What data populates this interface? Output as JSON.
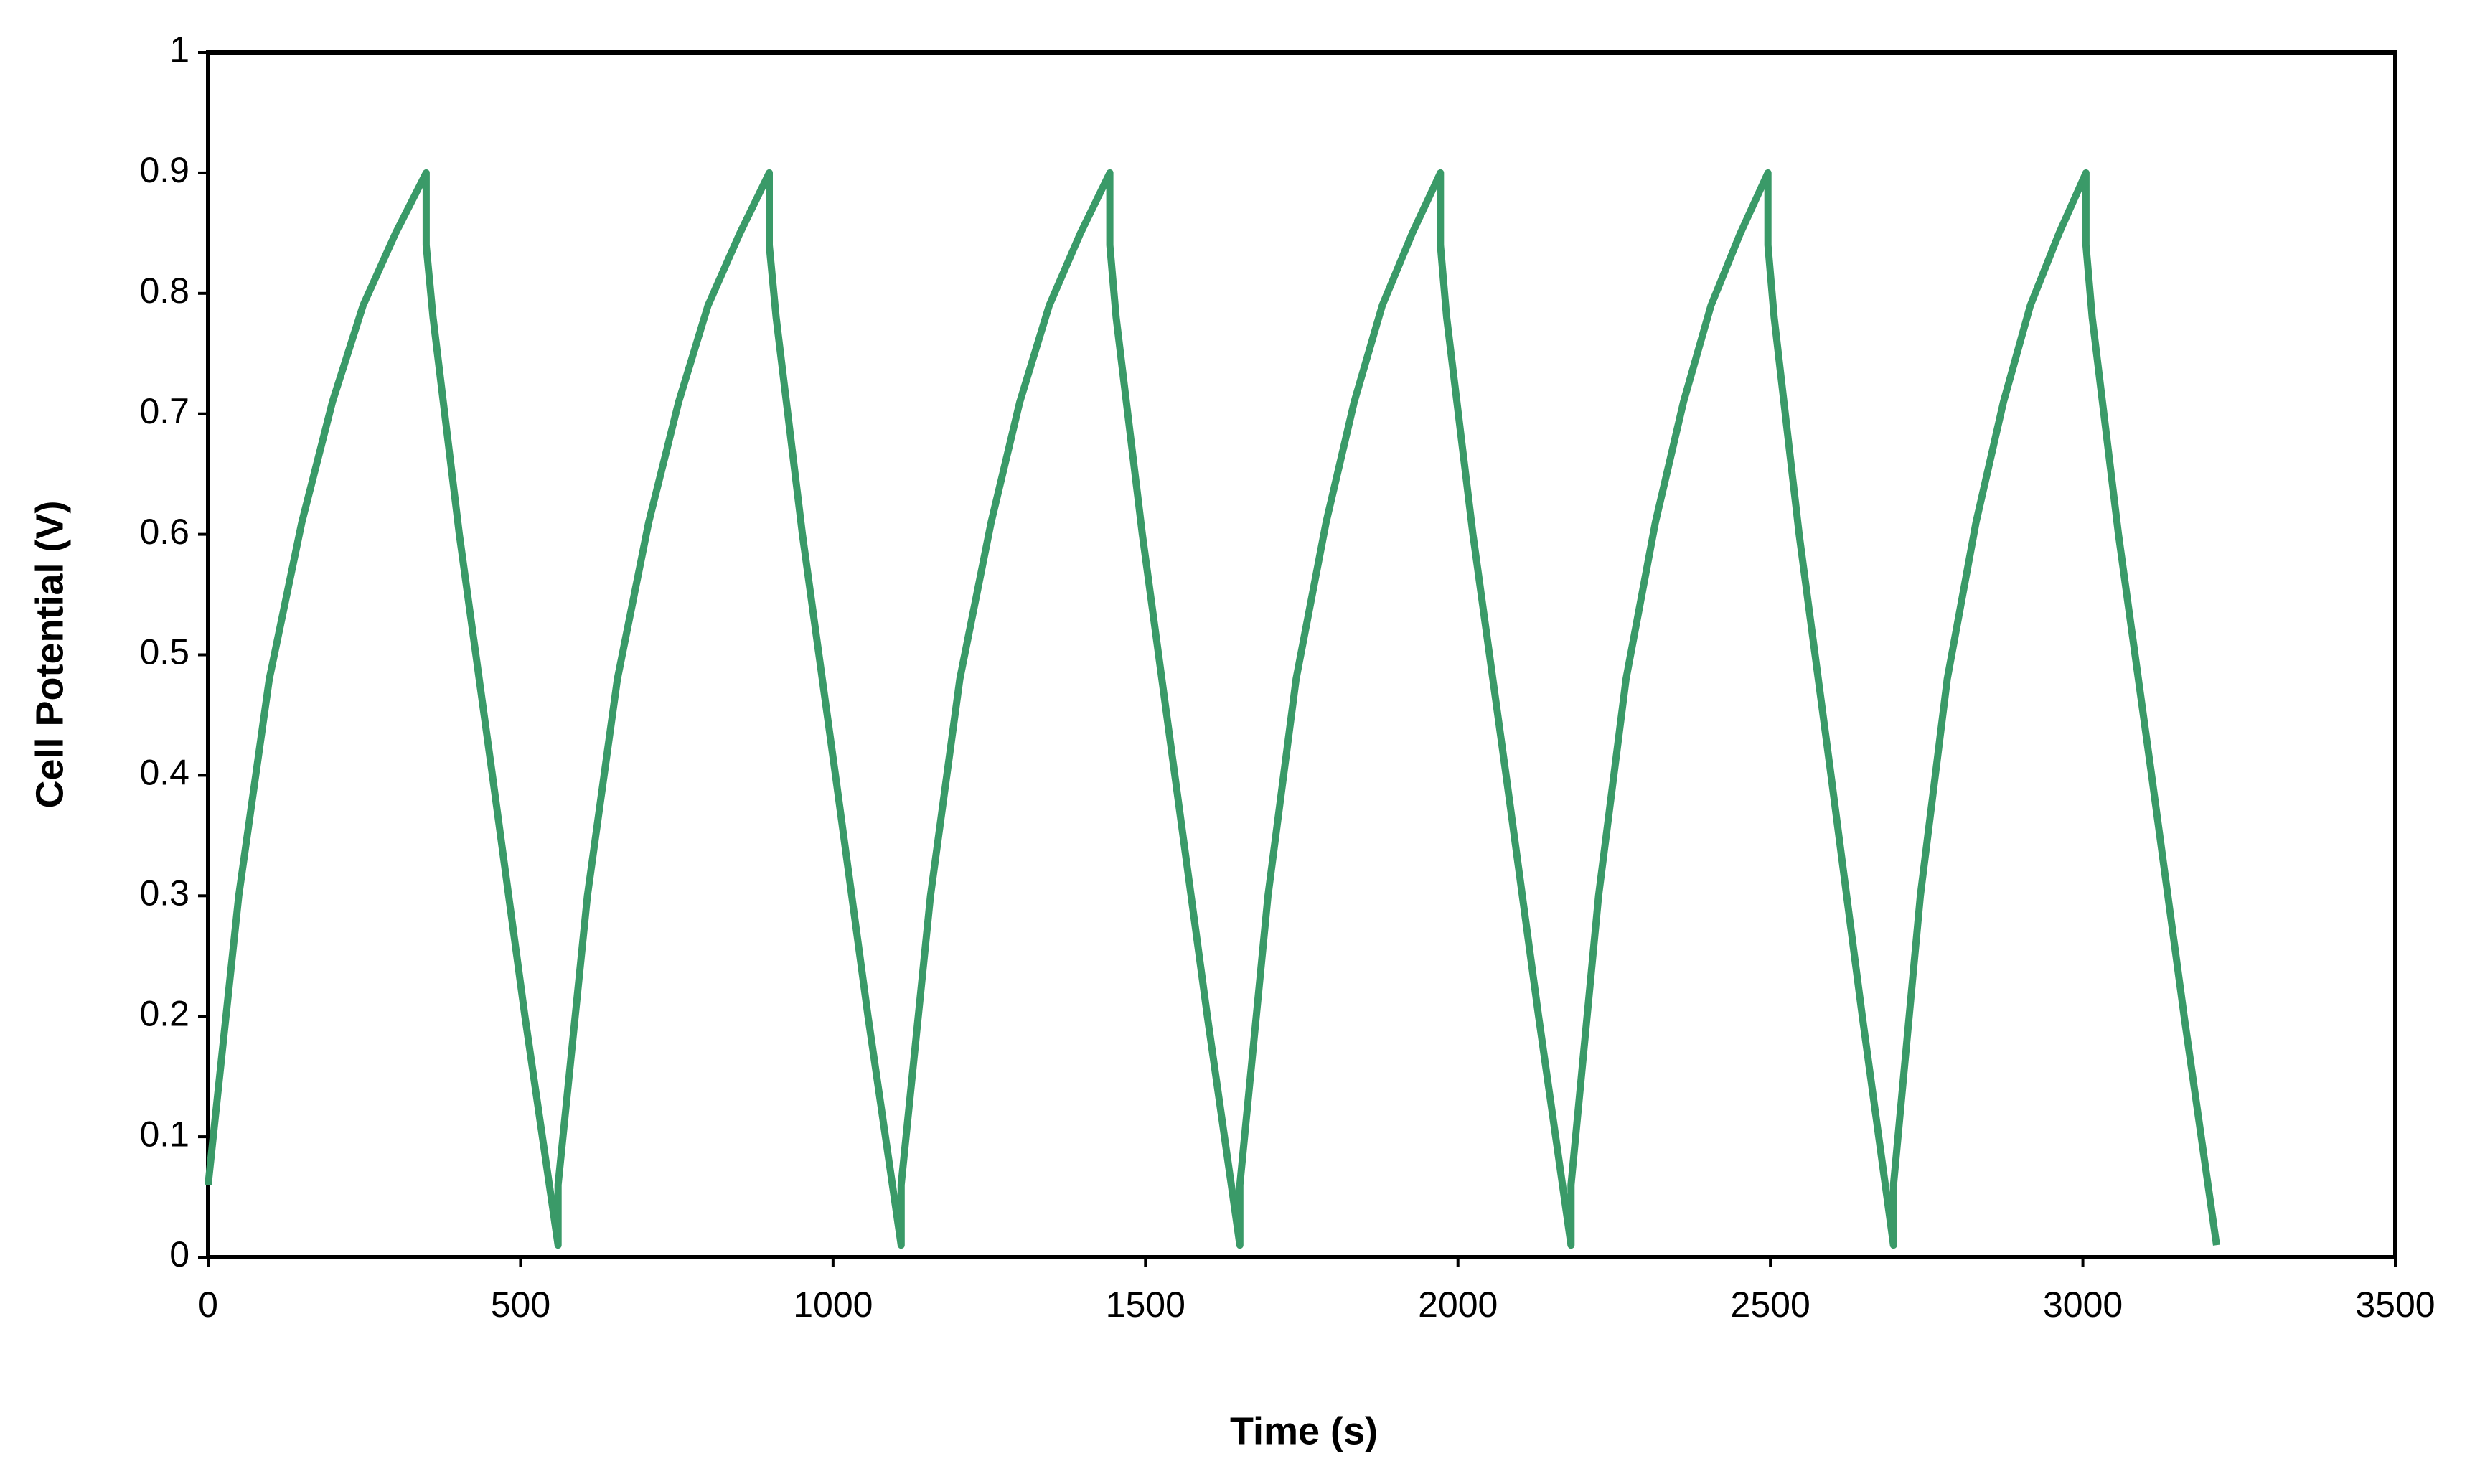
{
  "chart_data": {
    "type": "line",
    "x_label": "Time (s)",
    "y_label": "Cell Potential (V)",
    "xlim": [
      0,
      3500
    ],
    "xticks": [
      0,
      500,
      1000,
      1500,
      2000,
      2500,
      3000,
      3500
    ],
    "ylim": [
      0,
      1
    ],
    "yticks": [
      0,
      0.1,
      0.2,
      0.3,
      0.4,
      0.5,
      0.6,
      0.7,
      0.8,
      0.9,
      1
    ],
    "grid": false,
    "series": [
      {
        "color": "#3a9a68",
        "x": [
          0,
          49,
          98,
          150,
          199,
          248,
          300,
          349,
          349,
          360,
          402,
          455,
          507,
          560,
          560,
          607,
          655,
          705,
          753,
          800,
          851,
          898,
          898,
          909,
          951,
          1004,
          1056,
          1109,
          1109,
          1156,
          1203,
          1253,
          1299,
          1346,
          1396,
          1443,
          1443,
          1453,
          1495,
          1547,
          1599,
          1651,
          1651,
          1696,
          1741,
          1789,
          1834,
          1879,
          1927,
          1972,
          1972,
          1982,
          2024,
          2077,
          2129,
          2181,
          2181,
          2225,
          2269,
          2316,
          2361,
          2405,
          2452,
          2496,
          2496,
          2506,
          2546,
          2597,
          2647,
          2697,
          2697,
          2740,
          2783,
          2829,
          2873,
          2916,
          2962,
          3005,
          3005,
          3015,
          3057,
          3110,
          3162,
          3214
        ],
        "values": [
          0.06,
          0.3,
          0.48,
          0.61,
          0.71,
          0.79,
          0.85,
          0.9,
          0.84,
          0.78,
          0.6,
          0.4,
          0.2,
          0.01,
          0.06,
          0.3,
          0.48,
          0.61,
          0.71,
          0.79,
          0.85,
          0.9,
          0.84,
          0.78,
          0.6,
          0.4,
          0.2,
          0.01,
          0.06,
          0.3,
          0.48,
          0.61,
          0.71,
          0.79,
          0.85,
          0.9,
          0.84,
          0.78,
          0.6,
          0.4,
          0.2,
          0.01,
          0.06,
          0.3,
          0.48,
          0.61,
          0.71,
          0.79,
          0.85,
          0.9,
          0.84,
          0.78,
          0.6,
          0.4,
          0.2,
          0.01,
          0.06,
          0.3,
          0.48,
          0.61,
          0.71,
          0.79,
          0.85,
          0.9,
          0.84,
          0.78,
          0.6,
          0.4,
          0.2,
          0.01,
          0.06,
          0.3,
          0.48,
          0.61,
          0.71,
          0.79,
          0.85,
          0.9,
          0.84,
          0.78,
          0.6,
          0.4,
          0.2,
          0.01
        ]
      }
    ]
  }
}
